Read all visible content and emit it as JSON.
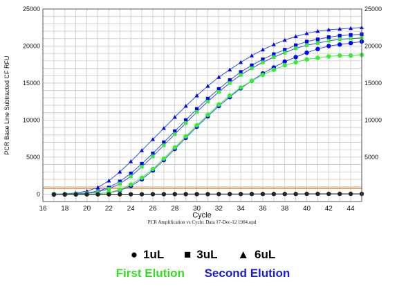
{
  "chart_data": {
    "type": "line",
    "xlabel": "Cycle",
    "ylabel": "PCR Base Line Subtracted CF RFU",
    "footer": "PCR Amplification vs Cycle: Data 17-Dec-12 1904.opd",
    "xlim": [
      16,
      45
    ],
    "ylim": [
      -1000,
      25000
    ],
    "x_ticks": [
      "16",
      "18",
      "20",
      "22",
      "24",
      "26",
      "28",
      "30",
      "32",
      "34",
      "36",
      "38",
      "40",
      "42",
      "44"
    ],
    "x_tick_values": [
      16,
      18,
      20,
      22,
      24,
      26,
      28,
      30,
      32,
      34,
      36,
      38,
      40,
      42,
      44
    ],
    "y_ticks": [
      "0",
      "5000",
      "10000",
      "15000",
      "20000",
      "25000"
    ],
    "y_tick_values": [
      0,
      5000,
      10000,
      15000,
      20000,
      25000
    ],
    "y_ticks_right": [
      "5000",
      "10000",
      "15000",
      "20000",
      "25000"
    ],
    "y_tick_values_right": [
      5000,
      10000,
      15000,
      20000,
      25000
    ],
    "grid": true,
    "threshold": {
      "value": 800,
      "color": "#f08030"
    },
    "x": [
      17,
      18,
      19,
      20,
      21,
      22,
      23,
      24,
      25,
      26,
      27,
      28,
      29,
      30,
      31,
      32,
      33,
      34,
      35,
      36,
      37,
      38,
      39,
      40,
      41,
      42,
      43,
      44,
      45
    ],
    "series": [
      {
        "marker": "triangle",
        "color": "#0000ff",
        "line_color": "#3050e0",
        "values": [
          0,
          50,
          150,
          400,
          900,
          1800,
          3000,
          4400,
          5900,
          7400,
          8900,
          10400,
          11900,
          13300,
          14600,
          15800,
          16800,
          17800,
          18700,
          19500,
          20200,
          20800,
          21300,
          21700,
          22000,
          22200,
          22300,
          22400,
          22500
        ]
      },
      {
        "marker": "square",
        "color": "#0000ff",
        "line_color": "#3050e0",
        "values": [
          0,
          0,
          50,
          150,
          400,
          900,
          1700,
          2800,
          4100,
          5500,
          7000,
          8500,
          10000,
          11500,
          12900,
          14200,
          15400,
          16500,
          17400,
          18200,
          18900,
          19500,
          20100,
          20600,
          20900,
          21200,
          21400,
          21500,
          21600
        ]
      },
      {
        "marker": "square",
        "color": "#33ee33",
        "line_color": "#3050e0",
        "values": [
          0,
          0,
          50,
          120,
          300,
          700,
          1400,
          2400,
          3700,
          5100,
          6600,
          8100,
          9600,
          11100,
          12500,
          13800,
          15000,
          16100,
          17000,
          17800,
          18500,
          19100,
          19700,
          20100,
          20400,
          20700,
          20900,
          21000,
          21100
        ]
      },
      {
        "marker": "circle",
        "color": "#0000ff",
        "line_color": "#3050e0",
        "values": [
          0,
          0,
          0,
          0,
          50,
          200,
          500,
          1100,
          2000,
          3200,
          4600,
          6100,
          7600,
          9100,
          10500,
          11900,
          13100,
          14300,
          15300,
          16300,
          17100,
          17900,
          18500,
          19100,
          19600,
          20000,
          20200,
          20400,
          20600
        ]
      },
      {
        "marker": "circle",
        "color": "#33ee33",
        "line_color": "#33ee33",
        "values": [
          0,
          0,
          0,
          0,
          50,
          200,
          600,
          1300,
          2200,
          3400,
          4800,
          6300,
          7800,
          9300,
          10700,
          12100,
          13300,
          14400,
          15300,
          16100,
          16800,
          17400,
          17800,
          18200,
          18400,
          18600,
          18700,
          18700,
          18800
        ]
      },
      {
        "marker": "circle",
        "color": "#222222",
        "line_color": "#222222",
        "values": [
          -60,
          -50,
          -50,
          -40,
          -40,
          -30,
          -30,
          -20,
          -20,
          -10,
          -10,
          0,
          0,
          0,
          0,
          10,
          10,
          10,
          20,
          20,
          20,
          20,
          20,
          30,
          30,
          30,
          30,
          30,
          30
        ]
      }
    ]
  },
  "legend": {
    "markers": [
      {
        "symbol": "●",
        "label": "1uL"
      },
      {
        "symbol": "■",
        "label": "3uL"
      },
      {
        "symbol": "▲",
        "label": "6uL"
      }
    ],
    "elutions": [
      {
        "label": "First Elution",
        "color": "#33dd22"
      },
      {
        "label": "Second Elution",
        "color": "#1a1adf"
      }
    ]
  }
}
